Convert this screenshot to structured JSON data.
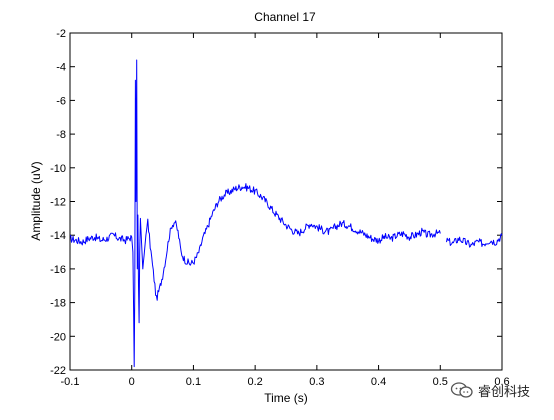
{
  "chart_data": {
    "type": "line",
    "title": "Channel 17",
    "xlabel": "Time (s)",
    "ylabel": "Amplitude (uV)",
    "xlim": [
      -0.1,
      0.6
    ],
    "ylim": [
      -22,
      -2
    ],
    "x_ticks": [
      -0.1,
      0,
      0.1,
      0.2,
      0.3,
      0.4,
      0.5,
      0.6
    ],
    "x_tick_labels": [
      "-0.1",
      "0",
      "0.1",
      "0.2",
      "0.3",
      "0.4",
      "0.5",
      "0.6"
    ],
    "y_ticks": [
      -22,
      -20,
      -18,
      -16,
      -14,
      -12,
      -10,
      -8,
      -6,
      -4,
      -2
    ],
    "y_tick_labels": [
      "-22",
      "-20",
      "-18",
      "-16",
      "-14",
      "-12",
      "-10",
      "-8",
      "-6",
      "-4",
      "-2"
    ],
    "grid": false,
    "line_color": "#0000ff",
    "series": [
      {
        "segments": [
          {
            "x": [
              -0.1,
              -0.09,
              -0.08,
              -0.07,
              -0.06,
              -0.05,
              -0.04,
              -0.03,
              -0.02,
              -0.01,
              0.0,
              0.002,
              0.004,
              0.005,
              0.006,
              0.007,
              0.008,
              0.009,
              0.01,
              0.011,
              0.012,
              0.013,
              0.014,
              0.016,
              0.018,
              0.02,
              0.023,
              0.026,
              0.03,
              0.035,
              0.04,
              0.045,
              0.05,
              0.055,
              0.06,
              0.065,
              0.07,
              0.075,
              0.08,
              0.085,
              0.09,
              0.095,
              0.1,
              0.105,
              0.11,
              0.115,
              0.12,
              0.13,
              0.14,
              0.15,
              0.16,
              0.17,
              0.18,
              0.19,
              0.2,
              0.21,
              0.22,
              0.23,
              0.24,
              0.25,
              0.26,
              0.27,
              0.28,
              0.29,
              0.3,
              0.31,
              0.32,
              0.33,
              0.34,
              0.35,
              0.36,
              0.37,
              0.38,
              0.39,
              0.4,
              0.41,
              0.42,
              0.43,
              0.44,
              0.45,
              0.46,
              0.47,
              0.48,
              0.49,
              0.5
            ],
            "y": [
              -14.2,
              -14.3,
              -14.4,
              -14.2,
              -14.1,
              -14.3,
              -14.2,
              -14.0,
              -14.2,
              -14.3,
              -14.1,
              -15.0,
              -21.8,
              -17.0,
              -4.8,
              -12.0,
              -3.6,
              -16.0,
              -12.8,
              -17.0,
              -19.2,
              -15.0,
              -13.0,
              -14.5,
              -16.0,
              -15.2,
              -14.0,
              -13.2,
              -14.6,
              -16.2,
              -17.8,
              -17.2,
              -16.4,
              -15.4,
              -14.2,
              -13.4,
              -13.2,
              -13.8,
              -15.0,
              -15.4,
              -15.6,
              -15.7,
              -15.6,
              -15.3,
              -14.9,
              -14.2,
              -13.8,
              -12.8,
              -12.0,
              -11.6,
              -11.4,
              -11.2,
              -11.1,
              -11.2,
              -11.4,
              -11.7,
              -12.1,
              -12.6,
              -13.0,
              -13.4,
              -13.7,
              -13.9,
              -13.6,
              -13.3,
              -13.5,
              -13.7,
              -13.8,
              -13.5,
              -13.3,
              -13.4,
              -13.6,
              -13.8,
              -14.0,
              -14.2,
              -14.3,
              -14.1,
              -14.2,
              -14.0,
              -13.9,
              -14.1,
              -14.0,
              -13.8,
              -14.0,
              -13.9,
              -13.9
            ]
          },
          {
            "x": [
              0.51,
              0.52,
              0.53,
              0.54,
              0.55,
              0.56,
              0.57,
              0.58,
              0.59,
              0.6
            ],
            "y": [
              -14.3,
              -14.5,
              -14.2,
              -14.4,
              -14.6,
              -14.4,
              -14.5,
              -14.3,
              -14.4,
              -14.0
            ]
          }
        ]
      }
    ]
  },
  "watermark": {
    "text": "睿创科技",
    "icon": "chat-bubbles-logo"
  }
}
